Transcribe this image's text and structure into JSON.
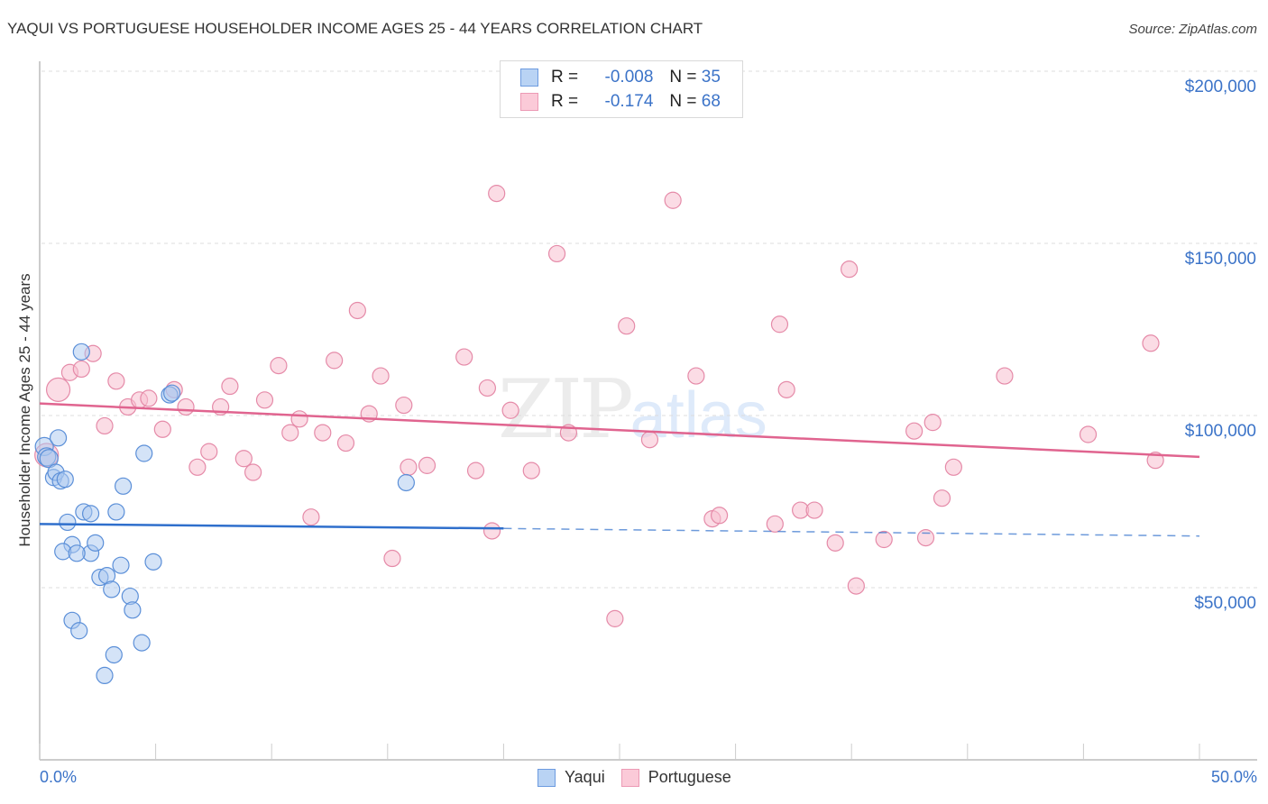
{
  "header": {
    "title": "YAQUI VS PORTUGUESE HOUSEHOLDER INCOME AGES 25 - 44 YEARS CORRELATION CHART",
    "source": "Source: ZipAtlas.com"
  },
  "legend_top": {
    "rows": [
      {
        "r_label": "R =",
        "r_value": "-0.008",
        "n_label": "N =",
        "n_value": "35",
        "color": "#a9c8f0"
      },
      {
        "r_label": "R =",
        "r_value": "-0.174",
        "n_label": "N =",
        "n_value": "68",
        "color": "#f7bfd0"
      }
    ]
  },
  "legend_bottom": {
    "items": [
      {
        "label": "Yaqui",
        "color": "#a9c8f0"
      },
      {
        "label": "Portuguese",
        "color": "#f7bfd0"
      }
    ]
  },
  "axes": {
    "y_label": "Householder Income Ages 25 - 44 years",
    "y_ticks": [
      "$200,000",
      "$150,000",
      "$100,000",
      "$50,000"
    ],
    "x_ticks": [
      "0.0%",
      "50.0%"
    ]
  },
  "watermark": {
    "zip": "ZIP",
    "atlas": "atlas"
  },
  "colors": {
    "yaqui_fill": "#a9c8f0",
    "yaqui_stroke": "#5b8fd8",
    "yaqui_trend": "#2f6fcc",
    "portuguese_fill": "#f7bfd0",
    "portuguese_stroke": "#e58aa8",
    "portuguese_trend": "#e0648f",
    "tick_label": "#3b73c8"
  },
  "chart_data": {
    "type": "scatter",
    "title": "YAQUI VS PORTUGUESE HOUSEHOLDER INCOME AGES 25 - 44 YEARS CORRELATION CHART",
    "xlabel": "",
    "ylabel": "Householder Income Ages 25 - 44 years",
    "xlim": [
      0,
      50
    ],
    "ylim": [
      0,
      210000
    ],
    "x_tick_labels": [
      "0.0%",
      "50.0%"
    ],
    "y_tick_labels": [
      "$50,000",
      "$100,000",
      "$150,000",
      "$200,000"
    ],
    "grid": true,
    "legend_position": "top-center and bottom",
    "series": [
      {
        "name": "Yaqui",
        "R": -0.008,
        "N": 35,
        "trend": {
          "x": [
            0,
            20,
            50
          ],
          "y": [
            68500,
            67200,
            65000
          ],
          "solid_until_x": 20
        },
        "points": [
          [
            0.2,
            91000
          ],
          [
            0.3,
            88000
          ],
          [
            0.4,
            87500
          ],
          [
            0.6,
            82000
          ],
          [
            0.7,
            83500
          ],
          [
            0.8,
            93500
          ],
          [
            0.9,
            81000
          ],
          [
            1.1,
            81500
          ],
          [
            1.2,
            69000
          ],
          [
            1.4,
            62500
          ],
          [
            1.0,
            60500
          ],
          [
            1.4,
            40500
          ],
          [
            1.7,
            37500
          ],
          [
            1.8,
            118500
          ],
          [
            1.9,
            72000
          ],
          [
            2.2,
            71500
          ],
          [
            2.2,
            60000
          ],
          [
            2.4,
            63000
          ],
          [
            2.6,
            53000
          ],
          [
            2.9,
            53500
          ],
          [
            3.1,
            49500
          ],
          [
            3.2,
            30500
          ],
          [
            2.8,
            24500
          ],
          [
            3.3,
            72000
          ],
          [
            3.5,
            56500
          ],
          [
            3.6,
            79500
          ],
          [
            3.9,
            47500
          ],
          [
            4.0,
            43500
          ],
          [
            4.4,
            34000
          ],
          [
            4.5,
            89000
          ],
          [
            4.9,
            57500
          ],
          [
            5.6,
            106000
          ],
          [
            5.7,
            106500
          ],
          [
            15.8,
            80500
          ],
          [
            1.6,
            60000
          ]
        ]
      },
      {
        "name": "Portuguese",
        "R": -0.174,
        "N": 68,
        "trend": {
          "x": [
            0,
            50
          ],
          "y": [
            103500,
            88000
          ]
        },
        "points": [
          [
            0.3,
            88500
          ],
          [
            0.8,
            107500
          ],
          [
            1.3,
            112500
          ],
          [
            1.8,
            113500
          ],
          [
            2.3,
            118000
          ],
          [
            2.8,
            97000
          ],
          [
            3.3,
            110000
          ],
          [
            3.8,
            102500
          ],
          [
            4.3,
            104500
          ],
          [
            4.7,
            105000
          ],
          [
            5.3,
            96000
          ],
          [
            5.8,
            107500
          ],
          [
            6.3,
            102500
          ],
          [
            6.8,
            85000
          ],
          [
            7.3,
            89500
          ],
          [
            7.8,
            102500
          ],
          [
            8.2,
            108500
          ],
          [
            8.8,
            87500
          ],
          [
            9.2,
            83500
          ],
          [
            9.7,
            104500
          ],
          [
            10.3,
            114500
          ],
          [
            10.8,
            95000
          ],
          [
            11.2,
            99000
          ],
          [
            11.7,
            70500
          ],
          [
            12.2,
            95000
          ],
          [
            12.7,
            116000
          ],
          [
            13.2,
            92000
          ],
          [
            13.7,
            130500
          ],
          [
            14.2,
            100500
          ],
          [
            14.7,
            111500
          ],
          [
            15.2,
            58500
          ],
          [
            15.7,
            103000
          ],
          [
            15.9,
            85000
          ],
          [
            16.7,
            85500
          ],
          [
            18.3,
            117000
          ],
          [
            18.8,
            84000
          ],
          [
            19.3,
            108000
          ],
          [
            19.5,
            66500
          ],
          [
            19.7,
            164500
          ],
          [
            20.3,
            101500
          ],
          [
            21.2,
            84000
          ],
          [
            22.3,
            147000
          ],
          [
            22.8,
            95000
          ],
          [
            24.8,
            41000
          ],
          [
            25.3,
            126000
          ],
          [
            26.3,
            93000
          ],
          [
            27.3,
            162500
          ],
          [
            28.3,
            111500
          ],
          [
            29.0,
            70000
          ],
          [
            29.3,
            71000
          ],
          [
            31.7,
            68500
          ],
          [
            31.9,
            126500
          ],
          [
            32.2,
            107500
          ],
          [
            32.8,
            72500
          ],
          [
            33.4,
            72500
          ],
          [
            34.3,
            63000
          ],
          [
            34.9,
            142500
          ],
          [
            35.2,
            50500
          ],
          [
            36.4,
            64000
          ],
          [
            37.7,
            95500
          ],
          [
            38.2,
            64500
          ],
          [
            38.5,
            98000
          ],
          [
            38.9,
            76000
          ],
          [
            39.4,
            85000
          ],
          [
            41.6,
            111500
          ],
          [
            45.2,
            94500
          ],
          [
            47.9,
            121000
          ],
          [
            48.1,
            87000
          ]
        ]
      }
    ]
  }
}
